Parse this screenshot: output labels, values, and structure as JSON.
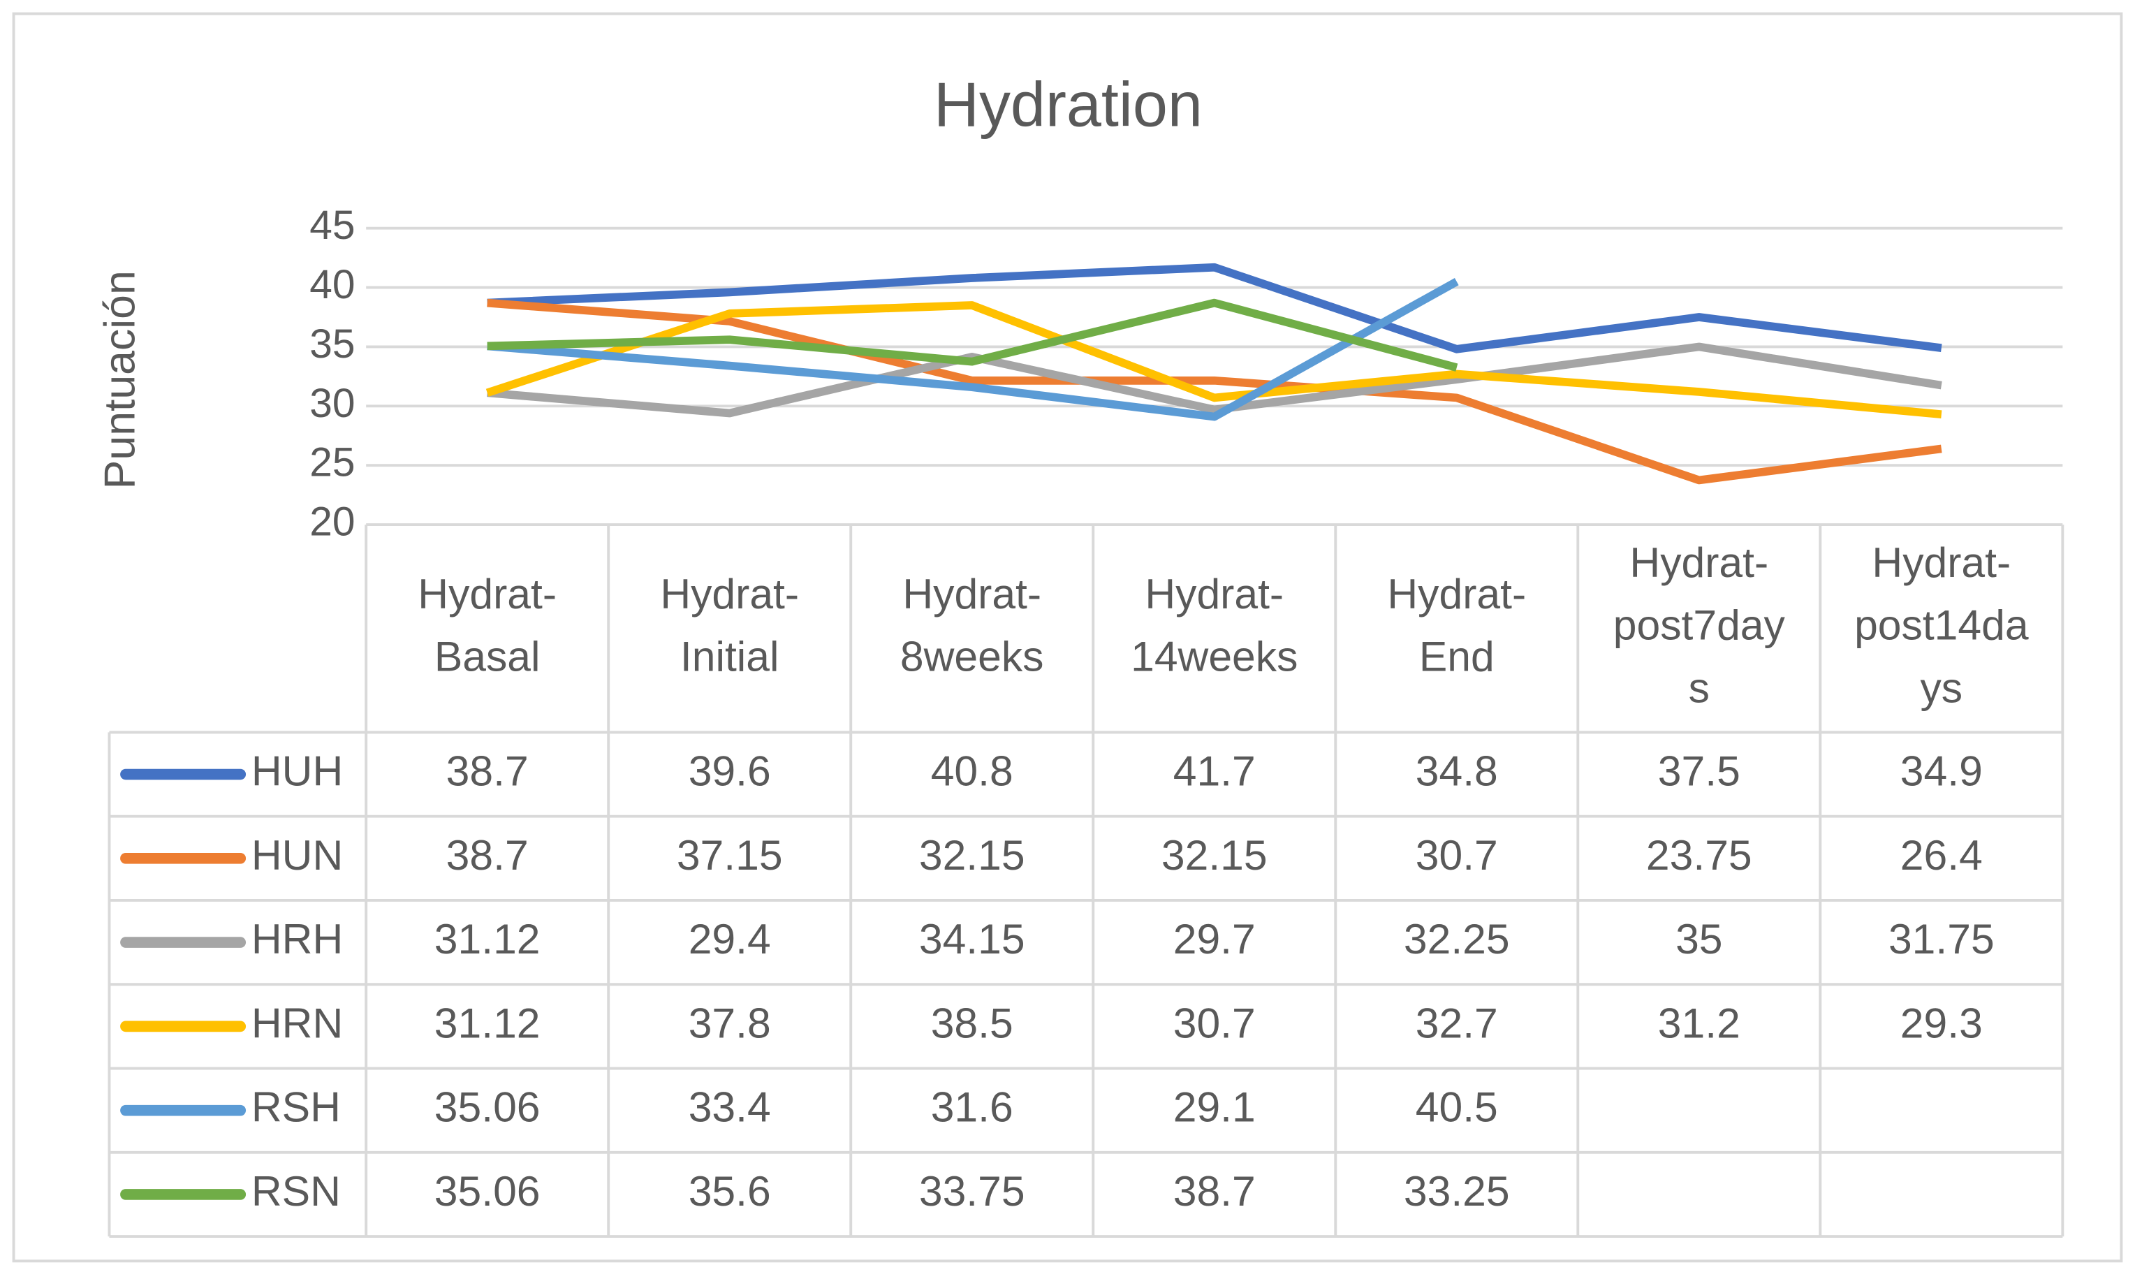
{
  "chart_data": {
    "type": "line",
    "title": "Hydration",
    "y_label": "Puntuación",
    "categories": [
      "Hydrat-Basal",
      "Hydrat-Initial",
      "Hydrat-8weeks",
      "Hydrat-14weeks",
      "Hydrat-End",
      "Hydrat-post7days",
      "Hydrat-post14days"
    ],
    "ylim": [
      20,
      45
    ],
    "yticks": [
      20,
      25,
      30,
      35,
      40,
      45
    ],
    "grid": true,
    "series": [
      {
        "name": "HUH",
        "color": "#4472c4",
        "values": [
          38.7,
          39.6,
          40.8,
          41.7,
          34.8,
          37.5,
          34.9
        ]
      },
      {
        "name": "HUN",
        "color": "#ed7d31",
        "values": [
          38.7,
          37.15,
          32.15,
          32.15,
          30.7,
          23.75,
          26.4
        ]
      },
      {
        "name": "HRH",
        "color": "#a5a5a5",
        "values": [
          31.12,
          29.4,
          34.15,
          29.7,
          32.25,
          35,
          31.75
        ]
      },
      {
        "name": "HRN",
        "color": "#ffc000",
        "values": [
          31.12,
          37.8,
          38.5,
          30.7,
          32.7,
          31.2,
          29.3
        ]
      },
      {
        "name": "RSH",
        "color": "#5b9bd5",
        "values": [
          35.06,
          33.4,
          31.6,
          29.1,
          40.5,
          null,
          null
        ]
      },
      {
        "name": "RSN",
        "color": "#70ad47",
        "values": [
          35.06,
          35.6,
          33.75,
          38.7,
          33.25,
          null,
          null
        ]
      }
    ]
  }
}
